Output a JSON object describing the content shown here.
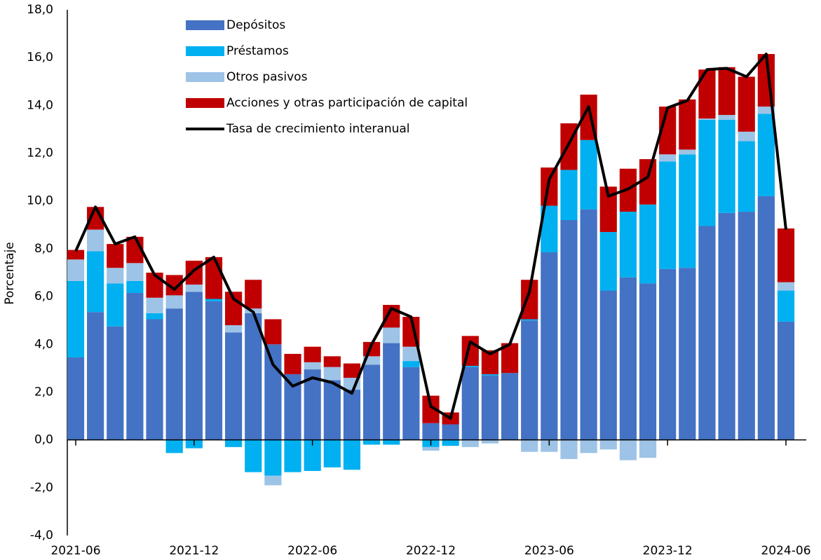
{
  "chart_data": {
    "type": "bar",
    "stacked": true,
    "y_label": "Porcentaje",
    "categories": [
      "2021-06",
      null,
      null,
      null,
      null,
      null,
      "2021-12",
      null,
      null,
      null,
      null,
      null,
      "2022-06",
      null,
      null,
      null,
      null,
      null,
      "2022-12",
      null,
      null,
      null,
      null,
      null,
      "2023-06",
      null,
      null,
      null,
      null,
      null,
      "2023-12",
      null,
      null,
      null,
      null,
      null,
      "2024-06"
    ],
    "series": [
      {
        "name": "Depósitos",
        "type": "bar",
        "color": "#4472c4",
        "values": [
          3.45,
          5.35,
          4.75,
          6.15,
          5.05,
          5.5,
          6.2,
          5.8,
          4.5,
          5.3,
          4.0,
          2.75,
          2.95,
          2.5,
          2.1,
          3.15,
          4.05,
          3.05,
          0.7,
          0.65,
          3.05,
          2.7,
          2.8,
          5.0,
          7.85,
          9.2,
          9.65,
          6.25,
          6.8,
          6.55,
          7.15,
          7.2,
          8.95,
          9.5,
          9.55,
          10.2,
          4.95
        ]
      },
      {
        "name": "Préstamos",
        "type": "bar",
        "color": "#00b0f0",
        "values": [
          3.2,
          2.55,
          1.8,
          0.5,
          0.25,
          -0.55,
          -0.35,
          0.1,
          -0.3,
          -1.35,
          -1.5,
          -1.35,
          -1.3,
          -1.15,
          -1.25,
          -0.2,
          -0.2,
          0.25,
          -0.3,
          -0.25,
          0.05,
          0.05,
          0,
          0.05,
          1.95,
          2.1,
          2.9,
          2.45,
          2.75,
          3.3,
          4.5,
          4.75,
          4.45,
          3.9,
          2.95,
          3.45,
          1.3
        ]
      },
      {
        "name": "Otros pasivos",
        "type": "bar",
        "color": "#9dc3e6",
        "values": [
          0.9,
          0.9,
          0.65,
          0.75,
          0.65,
          0.55,
          0.3,
          0,
          0.3,
          0.2,
          -0.4,
          0,
          0.3,
          0.55,
          0.5,
          0.35,
          0.65,
          0.6,
          -0.15,
          0,
          -0.3,
          -0.15,
          0,
          -0.5,
          -0.5,
          -0.8,
          -0.55,
          -0.4,
          -0.85,
          -0.75,
          0.3,
          0.2,
          0.05,
          0.2,
          0.4,
          0.3,
          0.35
        ]
      },
      {
        "name": "Acciones y otras participación de capital",
        "type": "bar",
        "color": "#c00000",
        "values": [
          0.4,
          0.95,
          1.0,
          1.1,
          1.05,
          0.85,
          1.0,
          1.75,
          1.4,
          1.2,
          1.05,
          0.85,
          0.65,
          0.45,
          0.6,
          0.6,
          0.95,
          1.25,
          1.15,
          0.5,
          1.25,
          1.0,
          1.25,
          1.65,
          1.6,
          1.95,
          1.9,
          1.9,
          1.8,
          1.9,
          2.0,
          2.1,
          2.05,
          2.0,
          2.3,
          2.2,
          2.25
        ]
      },
      {
        "name": "Tasa de crecimiento interanual",
        "type": "line",
        "color": "#000000",
        "values": [
          7.9,
          9.75,
          8.2,
          8.5,
          6.9,
          6.3,
          7.1,
          7.65,
          5.9,
          5.35,
          3.15,
          2.25,
          2.6,
          2.4,
          1.95,
          4.0,
          5.5,
          5.15,
          1.4,
          0.9,
          4.1,
          3.6,
          4.0,
          6.2,
          10.9,
          12.4,
          13.95,
          10.2,
          10.5,
          11.0,
          13.9,
          14.2,
          15.5,
          15.55,
          15.2,
          16.15,
          8.8
        ]
      }
    ],
    "ylim": [
      -4,
      18
    ],
    "yticks": [
      {
        "value": -4,
        "label": "-4,0"
      },
      {
        "value": -2,
        "label": "-2,0"
      },
      {
        "value": 0,
        "label": "0,0"
      },
      {
        "value": 2,
        "label": "2,0"
      },
      {
        "value": 4,
        "label": "4,0"
      },
      {
        "value": 6,
        "label": "6,0"
      },
      {
        "value": 8,
        "label": "8,0"
      },
      {
        "value": 10,
        "label": "10,0"
      },
      {
        "value": 12,
        "label": "12,0"
      },
      {
        "value": 14,
        "label": "14,0"
      },
      {
        "value": 16,
        "label": "16,0"
      },
      {
        "value": 18,
        "label": "18,0"
      }
    ],
    "grid": false,
    "legend": "upper left"
  }
}
